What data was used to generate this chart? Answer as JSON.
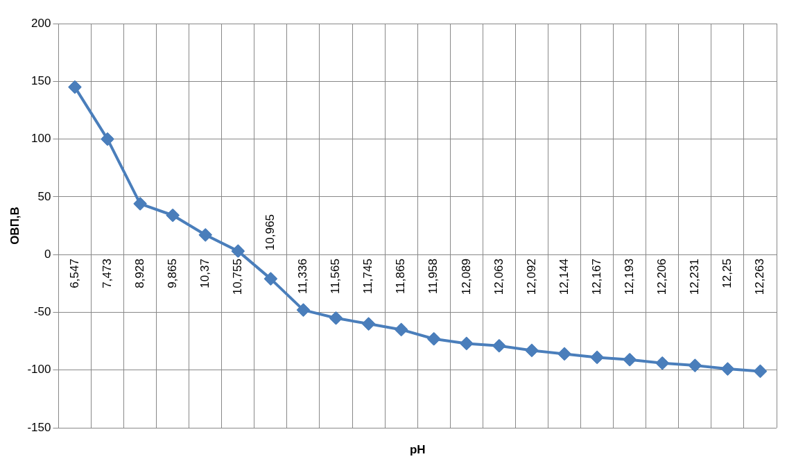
{
  "chart_data": {
    "type": "line",
    "xlabel": "pH",
    "ylabel": "ОВП,В",
    "categories": [
      "6,547",
      "7,473",
      "8,928",
      "9,865",
      "10,37",
      "10,755",
      "10,965",
      "11,336",
      "11,565",
      "11,745",
      "11,865",
      "11,958",
      "12,089",
      "12,063",
      "12,092",
      "12,144",
      "12,167",
      "12,193",
      "12,206",
      "12,231",
      "12,25",
      "12,263"
    ],
    "series": [
      {
        "color": "#4a7ebb",
        "values": [
          145,
          100,
          44,
          34,
          17,
          3,
          -21,
          -48,
          -55,
          -60,
          -65,
          -73,
          -77,
          -79,
          -83,
          -86,
          -89,
          -91,
          -94,
          -96,
          -99,
          -101
        ]
      }
    ],
    "ylim": [
      -150,
      200
    ],
    "yticks": [
      -150,
      -100,
      -50,
      0,
      50,
      100,
      150,
      200
    ],
    "grid": true,
    "legend": false,
    "marker": "diamond",
    "line_style": "solid"
  }
}
